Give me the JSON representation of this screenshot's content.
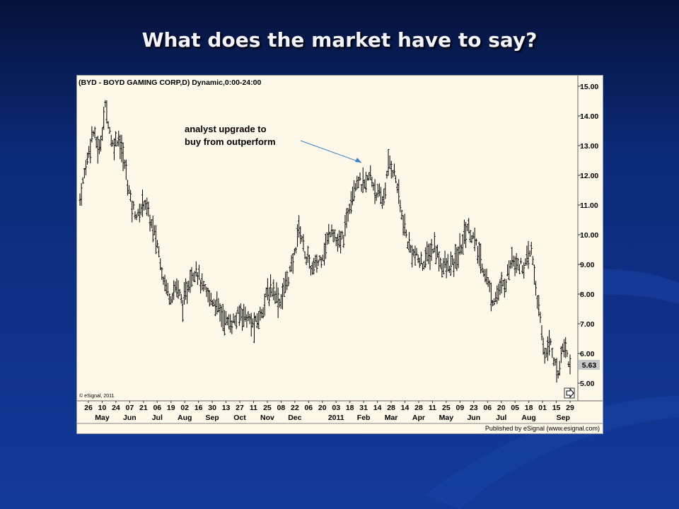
{
  "slide": {
    "title": "What does the market have to say?"
  },
  "colors": {
    "background": "#123a9a",
    "chart_bg": "#fdf8e9",
    "bars": "#000000",
    "annotation_arrow": "#3a7fc4",
    "last_price_box": "#c8c8c8"
  },
  "chart_data": {
    "type": "line",
    "title": "(BYD - BOYD GAMING CORP,D) Dynamic,0:00-24:00",
    "copyright": "© eSignal, 2011",
    "footer": "Published by eSignal (www.esignal.com)",
    "x_tick_labels": [
      "26",
      "10",
      "24",
      "07",
      "21",
      "06",
      "19",
      "02",
      "16",
      "30",
      "13",
      "27",
      "11",
      "25",
      "08",
      "22",
      "06",
      "20",
      "03",
      "18",
      "31",
      "14",
      "28",
      "14",
      "28",
      "11",
      "25",
      "09",
      "23",
      "06",
      "20",
      "05",
      "18",
      "01",
      "15",
      "29"
    ],
    "x_month_labels": [
      {
        "label": "May",
        "tick": 1
      },
      {
        "label": "Jun",
        "tick": 3
      },
      {
        "label": "Jul",
        "tick": 5
      },
      {
        "label": "Aug",
        "tick": 7
      },
      {
        "label": "Sep",
        "tick": 9
      },
      {
        "label": "Oct",
        "tick": 11
      },
      {
        "label": "Nov",
        "tick": 13
      },
      {
        "label": "Dec",
        "tick": 15
      },
      {
        "label": "2011",
        "tick": 18
      },
      {
        "label": "Feb",
        "tick": 20
      },
      {
        "label": "Mar",
        "tick": 22
      },
      {
        "label": "Apr",
        "tick": 24
      },
      {
        "label": "May",
        "tick": 26
      },
      {
        "label": "Jun",
        "tick": 28
      },
      {
        "label": "Jul",
        "tick": 30
      },
      {
        "label": "Aug",
        "tick": 32
      },
      {
        "label": "Sep",
        "tick": 34.5
      }
    ],
    "y_ticks": [
      "15.00",
      "14.00",
      "13.00",
      "12.00",
      "11.00",
      "10.00",
      "9.00",
      "8.00",
      "7.00",
      "6.00",
      "5.00"
    ],
    "ylim": [
      4.4,
      15.3
    ],
    "last_price": "5.63",
    "annotation": {
      "text": [
        "analyst upgrade to",
        "buy from outperform"
      ]
    },
    "series": [
      {
        "values": [
          11.2,
          12.4,
          13.5,
          12.8,
          14.4,
          13.0,
          13.3,
          12.3,
          11.0,
          10.6,
          11.2,
          10.4,
          9.7,
          8.5,
          7.9,
          8.3,
          7.6,
          8.5,
          8.9,
          8.2,
          7.9,
          7.7,
          7.3,
          7.0,
          7.1,
          7.4,
          7.2,
          6.9,
          7.3,
          8.0,
          8.2,
          7.7,
          8.4,
          9.0,
          10.3,
          9.3,
          8.8,
          9.1,
          9.5,
          10.3,
          9.6,
          10.0,
          11.3,
          11.9,
          11.6,
          12.0,
          11.4,
          11.1,
          12.5,
          11.9,
          10.5,
          9.6,
          9.3,
          9.0,
          9.3,
          9.6,
          9.0,
          8.9,
          9.0,
          9.5,
          10.3,
          9.9,
          9.2,
          8.6,
          7.8,
          8.1,
          8.4,
          9.3,
          9.0,
          8.9,
          9.5,
          7.7,
          6.0,
          6.4,
          5.2,
          6.4,
          5.6
        ]
      }
    ]
  }
}
